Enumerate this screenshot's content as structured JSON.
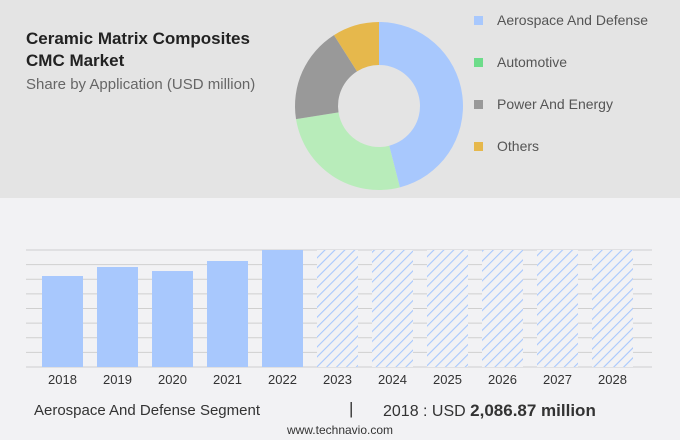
{
  "header": {
    "title": "Ceramic Matrix Composites CMC Market",
    "subtitle": "Share by Application (USD million)"
  },
  "chart_data": [
    {
      "type": "pie",
      "donut": true,
      "series": [
        {
          "name": "Aerospace And Defense",
          "value": 46,
          "color": "#a8c8fd"
        },
        {
          "name": "Automotive",
          "value": 26.5,
          "color": "#b8ecba",
          "legend_color": "#6ddc8a"
        },
        {
          "name": "Power And Energy",
          "value": 18.5,
          "color": "#999999"
        },
        {
          "name": "Others",
          "value": 9,
          "color": "#e6b84c"
        }
      ]
    },
    {
      "type": "bar",
      "categories": [
        "2018",
        "2019",
        "2020",
        "2021",
        "2022",
        "2023",
        "2024",
        "2025",
        "2026",
        "2027",
        "2028"
      ],
      "values": [
        2086.87,
        2293,
        2201,
        2431,
        2683,
        null,
        null,
        null,
        null,
        null,
        null
      ],
      "forecast": [
        "2023",
        "2024",
        "2025",
        "2026",
        "2027",
        "2028"
      ],
      "color": "#a8c8fd",
      "grid": true
    }
  ],
  "footer": {
    "segment": "Aerospace And Defense Segment",
    "separator": "|",
    "year_label": "2018 : USD ",
    "value": "2,086.87 million",
    "url": "www.technavio.com"
  }
}
